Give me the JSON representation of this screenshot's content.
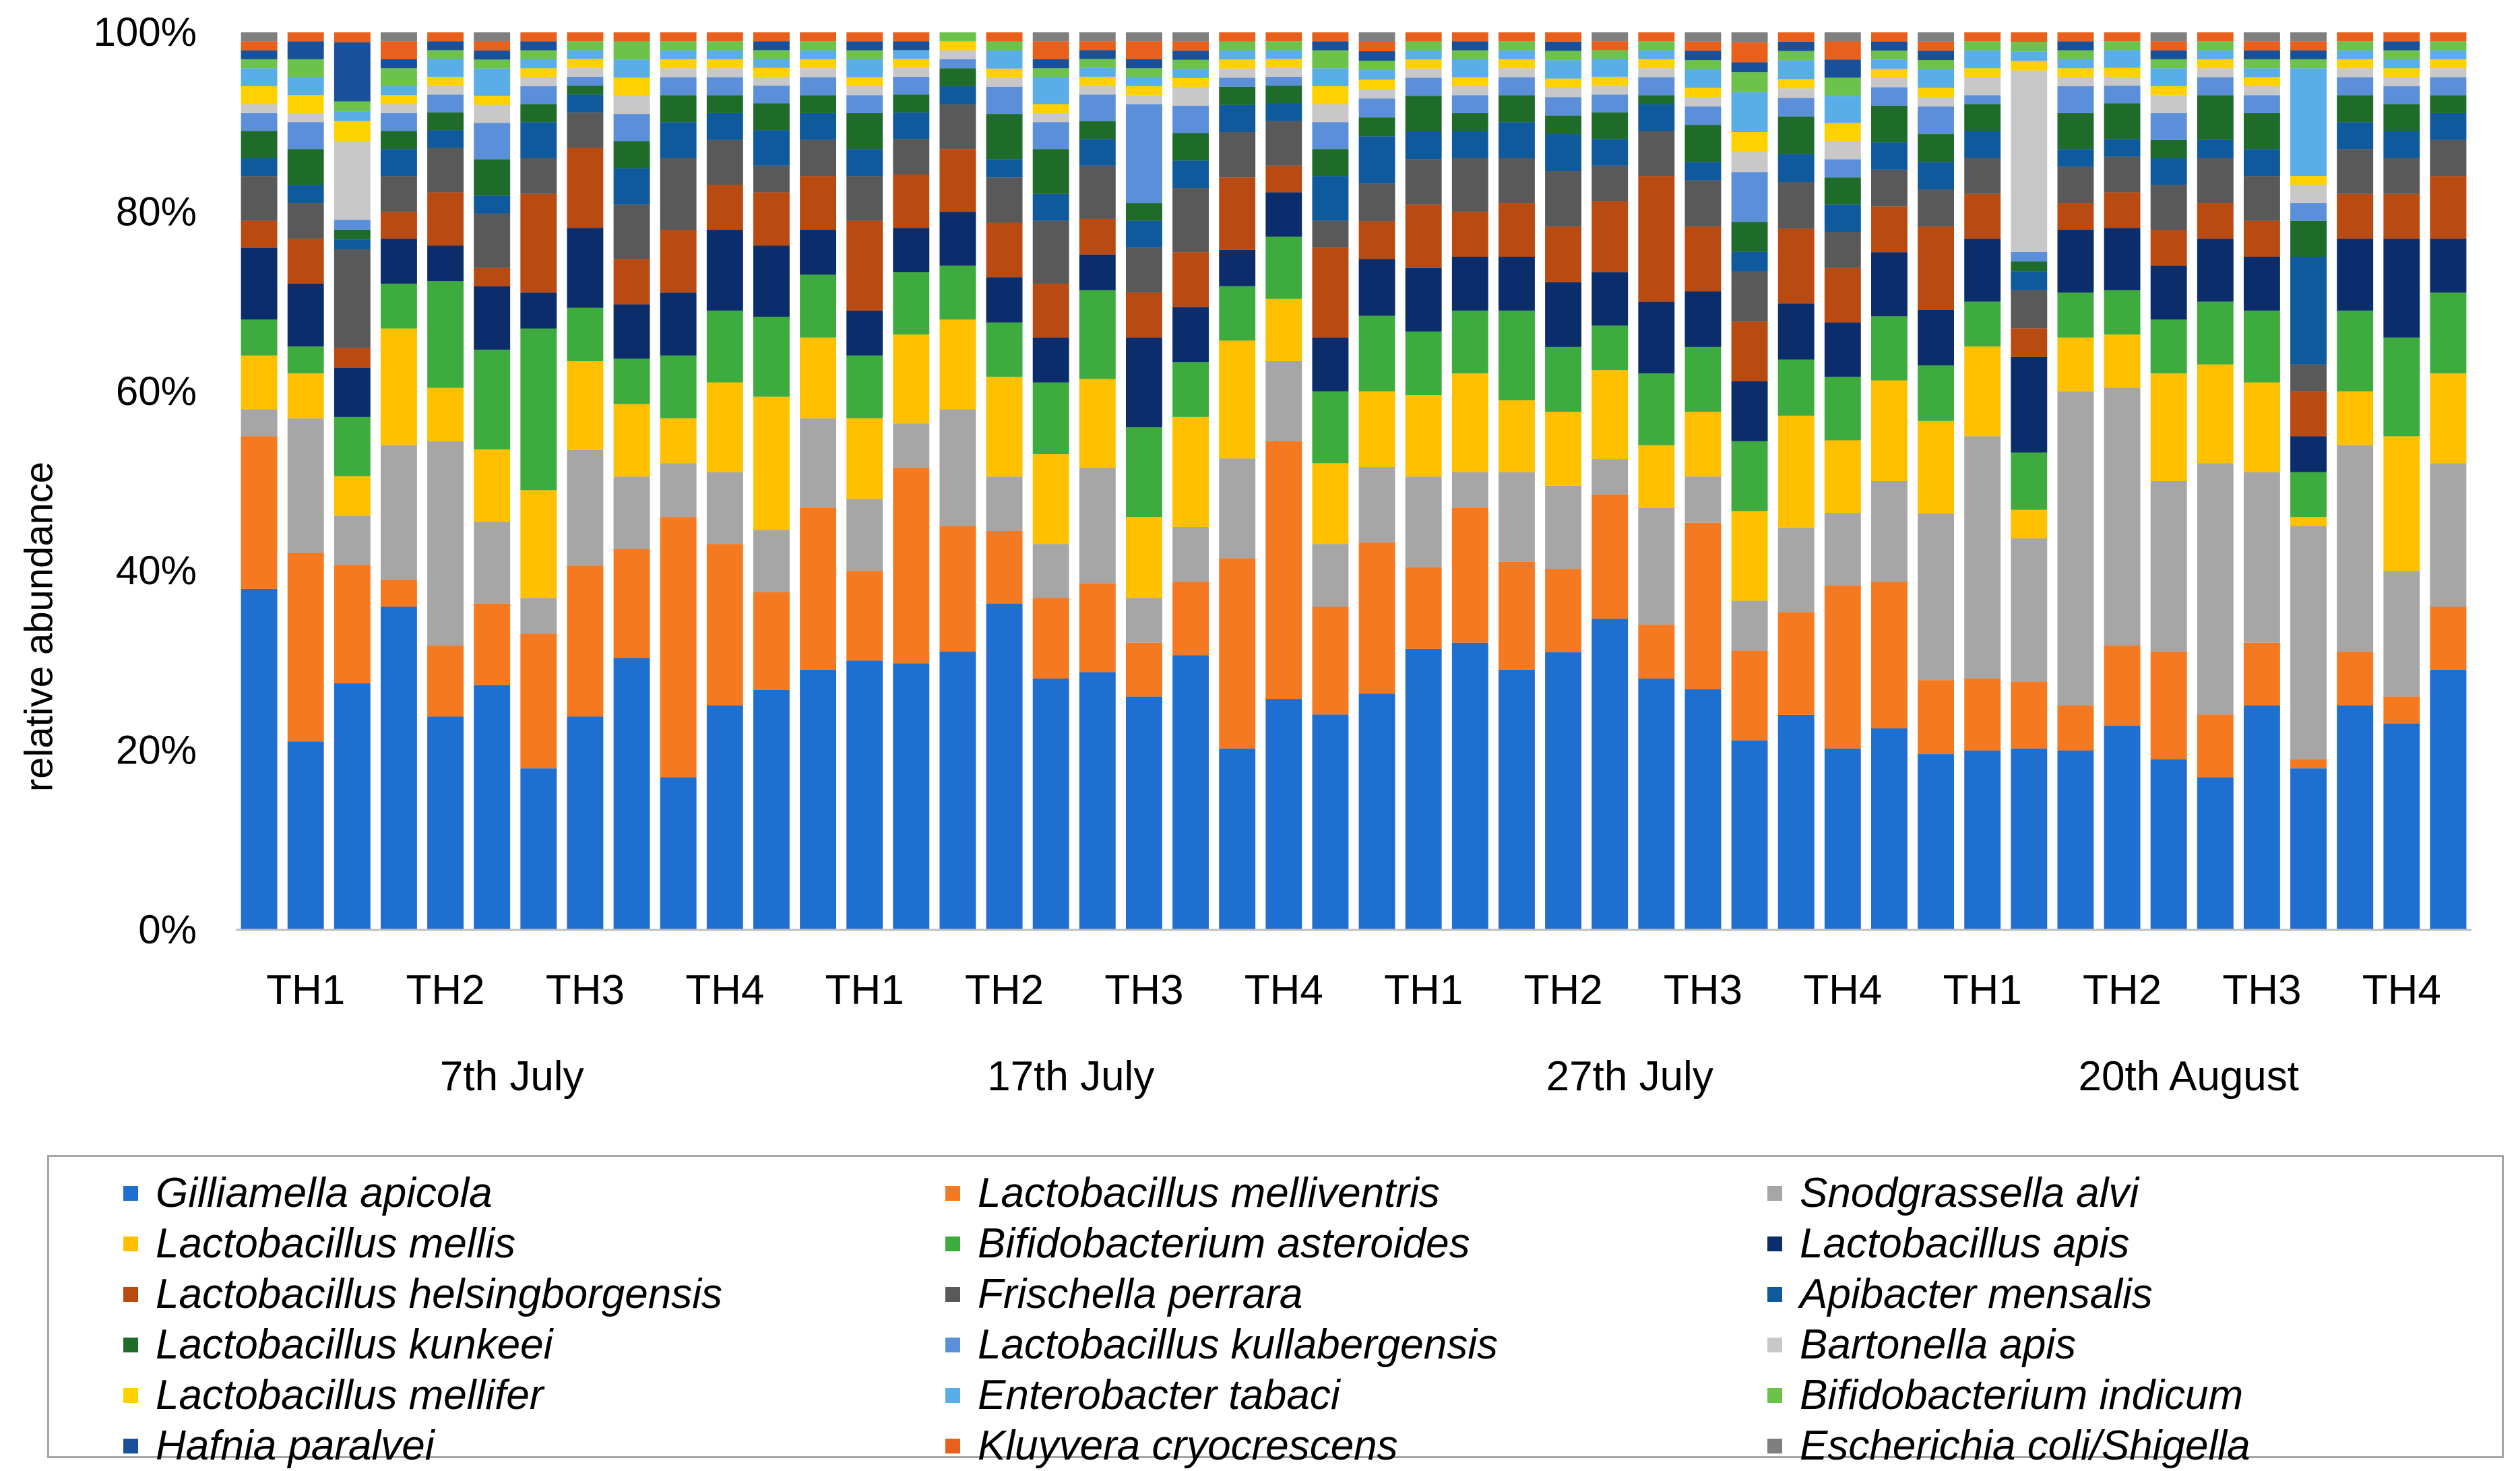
{
  "chart_data": {
    "type": "bar",
    "stacked": true,
    "ylabel": "relative abundance",
    "ylim": [
      0,
      100
    ],
    "yticks": [
      "0%",
      "20%",
      "40%",
      "60%",
      "80%",
      "100%"
    ],
    "legend_position": "bottom",
    "date_groups": [
      {
        "label": "7th July",
        "sites": [
          "TH1",
          "TH2",
          "TH3",
          "TH4"
        ]
      },
      {
        "label": "17th July",
        "sites": [
          "TH1",
          "TH2",
          "TH3",
          "TH4"
        ]
      },
      {
        "label": "27th July",
        "sites": [
          "TH1",
          "TH2",
          "TH3",
          "TH4"
        ]
      },
      {
        "label": "20th August",
        "sites": [
          "TH1",
          "TH2",
          "TH3",
          "TH4"
        ]
      }
    ],
    "series": [
      {
        "name": "Gilliamella apicola",
        "color": "#1f6fd0"
      },
      {
        "name": "Lactobacillus melliventris",
        "color": "#f47920"
      },
      {
        "name": "Snodgrassella alvi",
        "color": "#a6a6a6"
      },
      {
        "name": "Lactobacillus mellis",
        "color": "#ffc000"
      },
      {
        "name": "Bifidobacterium asteroides",
        "color": "#3eab3e"
      },
      {
        "name": "Lactobacillus apis",
        "color": "#0b2d6b"
      },
      {
        "name": "Lactobacillus helsingborgensis",
        "color": "#b84a12"
      },
      {
        "name": "Frischella perrara",
        "color": "#595959"
      },
      {
        "name": "Apibacter mensalis",
        "color": "#0f5a9c"
      },
      {
        "name": "Lactobacillus kunkeei",
        "color": "#1f6b2a"
      },
      {
        "name": "Lactobacillus kullabergensis",
        "color": "#5b8fd9"
      },
      {
        "name": "Bartonella apis",
        "color": "#c8c8c8"
      },
      {
        "name": "Lactobacillus mellifer",
        "color": "#ffd100"
      },
      {
        "name": "Enterobacter tabaci",
        "color": "#5aaee8"
      },
      {
        "name": "Bifidobacterium indicum",
        "color": "#6cc24a"
      },
      {
        "name": "Hafnia paralvei",
        "color": "#1a4f9a"
      },
      {
        "name": "Kluyvera cryocrescens",
        "color": "#e8601c"
      },
      {
        "name": "Escherichia coli/Shigella",
        "color": "#7f7f7f"
      }
    ],
    "bars": [
      [
        38,
        17,
        3,
        6,
        4,
        8,
        3,
        5,
        2,
        3,
        2,
        1,
        2,
        2,
        1,
        1,
        1,
        1
      ],
      [
        21,
        21,
        15,
        5,
        3,
        7,
        5,
        4,
        2,
        4,
        3,
        1,
        2,
        2,
        2,
        2,
        1,
        0
      ],
      [
        25,
        12,
        5,
        4,
        6,
        5,
        2,
        10,
        1,
        1,
        1,
        8,
        2,
        1,
        1,
        6,
        1,
        0
      ],
      [
        36,
        3,
        15,
        13,
        5,
        5,
        3,
        4,
        3,
        2,
        2,
        1,
        1,
        1,
        2,
        1,
        2,
        1
      ],
      [
        24,
        8,
        23,
        6,
        12,
        4,
        6,
        5,
        2,
        2,
        2,
        1,
        1,
        2,
        1,
        1,
        1,
        0
      ],
      [
        27,
        9,
        9,
        8,
        11,
        7,
        2,
        6,
        2,
        4,
        4,
        2,
        1,
        3,
        1,
        1,
        1,
        1
      ],
      [
        18,
        15,
        4,
        12,
        18,
        4,
        11,
        4,
        4,
        2,
        2,
        1,
        1,
        1,
        1,
        1,
        1,
        0
      ],
      [
        24,
        17,
        13,
        10,
        6,
        9,
        9,
        4,
        2,
        1,
        1,
        1,
        1,
        1,
        1,
        0,
        1,
        0
      ],
      [
        30,
        12,
        8,
        8,
        5,
        6,
        5,
        6,
        4,
        3,
        3,
        2,
        2,
        2,
        2,
        0,
        1,
        0
      ],
      [
        17,
        29,
        6,
        5,
        7,
        7,
        7,
        8,
        4,
        3,
        2,
        1,
        1,
        1,
        1,
        0,
        1,
        0
      ],
      [
        25,
        18,
        8,
        10,
        8,
        9,
        5,
        5,
        3,
        2,
        2,
        1,
        1,
        1,
        1,
        0,
        1,
        0
      ],
      [
        27,
        11,
        7,
        15,
        9,
        8,
        6,
        3,
        4,
        3,
        2,
        1,
        1,
        1,
        1,
        1,
        1,
        0
      ],
      [
        29,
        18,
        10,
        9,
        7,
        5,
        6,
        4,
        3,
        2,
        2,
        1,
        1,
        1,
        1,
        0,
        1,
        0
      ],
      [
        30,
        10,
        8,
        9,
        7,
        5,
        10,
        5,
        3,
        4,
        2,
        1,
        1,
        2,
        1,
        1,
        1,
        0
      ],
      [
        30,
        22,
        5,
        10,
        7,
        5,
        6,
        4,
        3,
        2,
        2,
        1,
        1,
        1,
        0,
        1,
        1,
        0
      ],
      [
        31,
        14,
        13,
        10,
        6,
        6,
        7,
        5,
        2,
        2,
        1,
        1,
        1,
        0,
        1,
        0,
        0,
        0
      ],
      [
        36,
        8,
        6,
        11,
        6,
        5,
        6,
        5,
        2,
        5,
        3,
        1,
        1,
        2,
        1,
        0,
        1,
        0
      ],
      [
        28,
        9,
        6,
        10,
        8,
        5,
        6,
        7,
        3,
        5,
        3,
        1,
        1,
        3,
        1,
        1,
        2,
        1
      ],
      [
        29,
        10,
        13,
        10,
        10,
        4,
        4,
        6,
        3,
        2,
        3,
        1,
        1,
        1,
        1,
        1,
        1,
        1
      ],
      [
        26,
        6,
        5,
        9,
        10,
        10,
        5,
        5,
        3,
        2,
        11,
        1,
        1,
        1,
        1,
        1,
        2,
        1
      ],
      [
        30,
        8,
        6,
        12,
        6,
        6,
        6,
        7,
        3,
        3,
        3,
        2,
        1,
        1,
        1,
        1,
        1,
        1
      ],
      [
        20,
        21,
        11,
        13,
        6,
        4,
        8,
        5,
        3,
        2,
        1,
        1,
        1,
        1,
        1,
        0,
        1,
        0
      ],
      [
        26,
        29,
        9,
        7,
        7,
        5,
        3,
        5,
        2,
        2,
        1,
        1,
        1,
        1,
        1,
        0,
        1,
        0
      ],
      [
        24,
        12,
        7,
        9,
        8,
        6,
        10,
        3,
        5,
        3,
        3,
        2,
        2,
        2,
        2,
        1,
        1,
        0
      ],
      [
        25,
        16,
        8,
        8,
        8,
        6,
        4,
        4,
        5,
        2,
        2,
        1,
        1,
        1,
        1,
        1,
        1,
        1
      ],
      [
        31,
        9,
        10,
        9,
        7,
        7,
        7,
        5,
        3,
        4,
        2,
        1,
        1,
        1,
        1,
        0,
        1,
        0
      ],
      [
        32,
        15,
        4,
        11,
        7,
        6,
        5,
        6,
        3,
        2,
        2,
        1,
        1,
        2,
        1,
        1,
        1,
        0
      ],
      [
        29,
        12,
        10,
        8,
        10,
        6,
        6,
        5,
        4,
        3,
        2,
        1,
        1,
        1,
        1,
        0,
        1,
        0
      ],
      [
        30,
        9,
        9,
        8,
        7,
        7,
        6,
        6,
        4,
        2,
        2,
        1,
        1,
        2,
        1,
        1,
        1,
        0
      ],
      [
        35,
        14,
        4,
        10,
        5,
        6,
        8,
        4,
        3,
        3,
        2,
        1,
        1,
        2,
        1,
        0,
        1,
        1
      ],
      [
        28,
        6,
        13,
        7,
        8,
        8,
        14,
        5,
        3,
        1,
        2,
        1,
        1,
        1,
        1,
        0,
        1,
        0
      ],
      [
        26,
        18,
        5,
        7,
        7,
        6,
        7,
        5,
        2,
        4,
        2,
        1,
        1,
        2,
        1,
        1,
        1,
        1
      ],
      [
        19,
        9,
        5,
        9,
        7,
        6,
        6,
        5,
        2,
        3,
        5,
        2,
        2,
        4,
        2,
        1,
        2,
        1
      ],
      [
        23,
        11,
        9,
        12,
        6,
        6,
        8,
        5,
        3,
        4,
        2,
        1,
        1,
        2,
        1,
        1,
        1,
        0
      ],
      [
        20,
        18,
        8,
        8,
        7,
        6,
        6,
        4,
        3,
        3,
        2,
        2,
        2,
        3,
        2,
        2,
        2,
        1
      ],
      [
        22,
        16,
        11,
        11,
        7,
        7,
        5,
        4,
        3,
        4,
        2,
        1,
        1,
        1,
        1,
        1,
        1,
        0
      ],
      [
        19,
        8,
        18,
        10,
        6,
        6,
        9,
        4,
        3,
        3,
        3,
        1,
        1,
        2,
        1,
        1,
        1,
        1
      ],
      [
        20,
        8,
        27,
        10,
        5,
        7,
        5,
        4,
        3,
        3,
        1,
        2,
        1,
        2,
        1,
        0,
        1,
        0
      ],
      [
        19,
        7,
        15,
        3,
        6,
        10,
        3,
        4,
        2,
        1,
        1,
        19,
        1,
        1,
        1,
        0,
        1,
        0
      ],
      [
        20,
        5,
        35,
        6,
        5,
        7,
        3,
        4,
        2,
        4,
        3,
        1,
        1,
        1,
        1,
        1,
        1,
        0
      ],
      [
        23,
        9,
        29,
        6,
        5,
        7,
        4,
        4,
        2,
        4,
        2,
        1,
        1,
        2,
        1,
        0,
        1,
        0
      ],
      [
        19,
        12,
        19,
        12,
        6,
        6,
        4,
        5,
        3,
        2,
        3,
        2,
        1,
        2,
        1,
        1,
        1,
        1
      ],
      [
        17,
        7,
        28,
        11,
        7,
        7,
        4,
        5,
        2,
        5,
        2,
        1,
        1,
        1,
        1,
        0,
        1,
        0
      ],
      [
        25,
        7,
        19,
        10,
        8,
        6,
        4,
        5,
        3,
        4,
        2,
        1,
        1,
        1,
        1,
        1,
        1,
        1
      ],
      [
        18,
        1,
        26,
        1,
        5,
        4,
        5,
        3,
        12,
        4,
        2,
        2,
        1,
        12,
        1,
        1,
        1,
        1
      ],
      [
        25,
        6,
        23,
        6,
        9,
        8,
        5,
        5,
        3,
        3,
        2,
        1,
        1,
        1,
        1,
        0,
        1,
        0
      ],
      [
        23,
        3,
        14,
        15,
        11,
        11,
        5,
        4,
        3,
        3,
        2,
        1,
        1,
        1,
        1,
        1,
        1,
        0
      ],
      [
        29,
        7,
        16,
        10,
        9,
        6,
        7,
        4,
        3,
        2,
        2,
        1,
        1,
        1,
        1,
        0,
        1,
        0
      ]
    ]
  }
}
